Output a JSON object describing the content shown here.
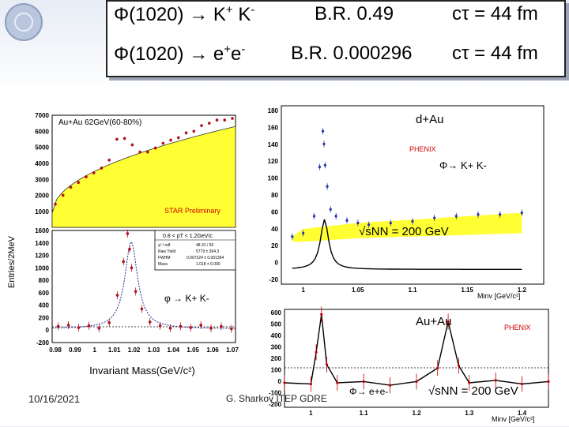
{
  "header": {
    "row1": {
      "particle": "Φ(1020)",
      "arrow": "→",
      "products": "K",
      "sup1": "+",
      "products2": "K",
      "sup2": "-",
      "br": "B.R. 0.49",
      "ctau_symbol": "cτ",
      "ctau_value": "= 44 fm"
    },
    "row2": {
      "particle": "Φ(1020)",
      "arrow": "→",
      "products": "e",
      "sup1": "+",
      "products2": "e",
      "sup2": "-",
      "br": "B.R. 0.000296",
      "ctau_symbol": "cτ",
      "ctau_value": "= 44 fm"
    }
  },
  "star_plot": {
    "y_axis_label": "Entries/2MeV",
    "x_axis_label": "Invariant Mass(GeV/c²)",
    "top_panel": {
      "title": "Au+Au 62GeV(60-80%)",
      "preliminary": "STAR Preliminary",
      "y_ticks": [
        "7000",
        "6000",
        "5000",
        "4000",
        "3000",
        "2000",
        "1000"
      ]
    },
    "bottom_panel": {
      "y_ticks": [
        "1600",
        "1400",
        "1200",
        "1000",
        "800",
        "600",
        "400",
        "200",
        "0",
        "-200"
      ],
      "x_ticks": [
        "0.98",
        "0.99",
        "1",
        "1.01",
        "1.02",
        "1.03",
        "1.04",
        "1.05",
        "1.06",
        "1.07"
      ],
      "stats_header": "0.8 < pT < 1.2GeV/c",
      "stats_rows": [
        {
          "name": "χ² / ndf",
          "value": "48.31 / 50"
        },
        {
          "name": "Raw Yield",
          "value": "5779 ± 394.3"
        },
        {
          "name": "FWHM",
          "value": "0.007224 ± 0.001394"
        },
        {
          "name": "Mass",
          "value": "1.018 ± 0.000"
        }
      ],
      "decay_label": "φ → K+ K-"
    }
  },
  "phenix_dau": {
    "title": "d+Au",
    "experiment": "PHENIX",
    "decay": "Φ→ K+ K-",
    "energy": "√sNN = 200 GeV",
    "y_ticks": [
      "180",
      "160",
      "140",
      "120",
      "100",
      "80",
      "60",
      "40",
      "20",
      "0",
      "-20"
    ],
    "x_ticks": [
      "1",
      "1.05",
      "1.1",
      "1.15",
      "1.2"
    ],
    "x_axis_label": "Minv [GeV/c²]"
  },
  "phenix_auau": {
    "title": "Au+Au",
    "experiment": "PHENIX",
    "decay": "Φ→ e+e-",
    "energy": "√sNN = 200 GeV",
    "y_ticks": [
      "600",
      "500",
      "400",
      "300",
      "200",
      "100",
      "0",
      "-100",
      "-200"
    ],
    "x_ticks": [
      "1",
      "1.1",
      "1.2",
      "1.3",
      "1.4"
    ],
    "x_axis_label": "Minv [GeV/c²]"
  },
  "footer": {
    "date": "10/16/2021",
    "author": "G. Sharkov ITEP GDRE"
  },
  "chart_data": [
    {
      "type": "scatter",
      "title": "Au+Au 62GeV(60-80%)",
      "ylabel": "Entries/2MeV",
      "ylim": [
        0,
        7000
      ],
      "series": [
        {
          "name": "",
          "y": [
            1450,
            2000,
            2500,
            2800,
            3150,
            3400,
            3700,
            4200,
            5500,
            5550,
            5150,
            4700,
            4700,
            4950,
            5250,
            5450,
            5600,
            5900,
            6000,
            6350,
            6500,
            6700,
            6700,
            6800
          ]
        }
      ]
    },
    {
      "type": "scatter",
      "x": [
        0.983,
        0.988,
        0.993,
        0.998,
        1.003,
        1.008,
        1.012,
        1.015,
        1.017,
        1.018,
        1.019,
        1.021,
        1.024,
        1.028,
        1.033,
        1.038,
        1.043,
        1.048,
        1.053,
        1.058,
        1.063,
        1.068
      ],
      "y": [
        60,
        80,
        40,
        70,
        30,
        120,
        560,
        1100,
        1550,
        1300,
        1000,
        620,
        340,
        130,
        70,
        30,
        60,
        40,
        80,
        30,
        60,
        20
      ],
      "xlabel": "Invariant Mass(GeV/c²)",
      "ylabel": "Entries/2MeV",
      "xlim": [
        0.98,
        1.07
      ],
      "ylim": [
        -200,
        1600
      ]
    },
    {
      "type": "scatter",
      "title": "d+Au",
      "x": [
        0.99,
        1.0,
        1.01,
        1.015,
        1.018,
        1.019,
        1.02,
        1.022,
        1.025,
        1.03,
        1.04,
        1.05,
        1.06,
        1.08,
        1.1,
        1.12,
        1.14,
        1.16,
        1.18,
        1.2
      ],
      "y": [
        36,
        40,
        60,
        118,
        160,
        145,
        120,
        95,
        68,
        60,
        55,
        52,
        50,
        52,
        54,
        58,
        60,
        62,
        62,
        64
      ],
      "xlabel": "Minv [GeV/c²]",
      "xlim": [
        0.98,
        1.22
      ],
      "ylim": [
        -20,
        190
      ]
    },
    {
      "type": "line",
      "title": "Au+Au",
      "x": [
        0.95,
        1.0,
        1.01,
        1.02,
        1.03,
        1.05,
        1.1,
        1.15,
        1.2,
        1.24,
        1.26,
        1.28,
        1.3,
        1.35,
        1.4,
        1.45
      ],
      "y": [
        0,
        -10,
        250,
        560,
        150,
        0,
        10,
        -20,
        10,
        120,
        500,
        140,
        0,
        20,
        -10,
        10
      ],
      "xlabel": "Minv [GeV/c²]",
      "xlim": [
        0.95,
        1.45
      ],
      "ylim": [
        -200,
        600
      ]
    }
  ]
}
